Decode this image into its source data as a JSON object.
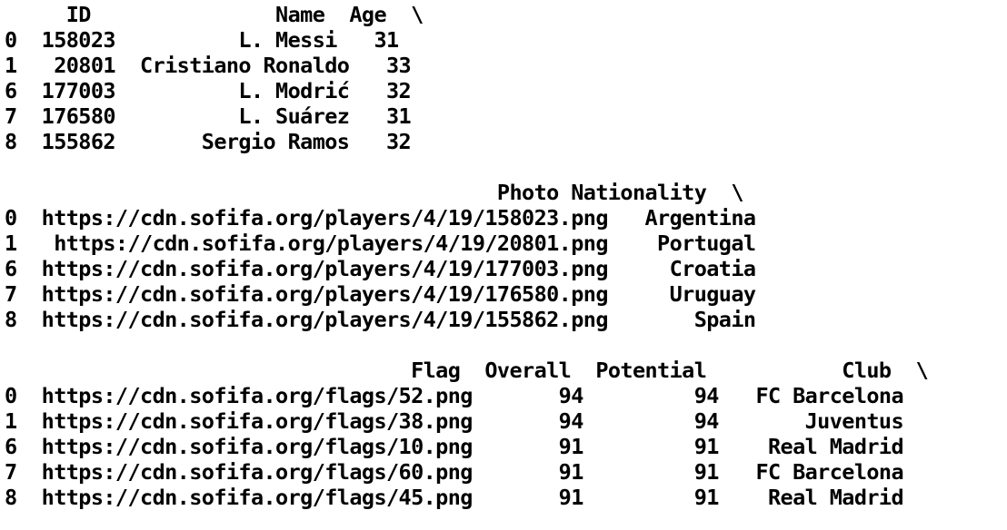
{
  "lines": [
    "     ID               Name  Age  \\",
    "0  158023          L. Messi   31",
    "1   20801  Cristiano Ronaldo   33",
    "6  177003          L. Modrić   32",
    "7  176580          L. Suárez   31",
    "8  155862       Sergio Ramos   32",
    "",
    "                                        Photo Nationality  \\",
    "0  https://cdn.sofifa.org/players/4/19/158023.png   Argentina",
    "1   https://cdn.sofifa.org/players/4/19/20801.png    Portugal",
    "6  https://cdn.sofifa.org/players/4/19/177003.png     Croatia",
    "7  https://cdn.sofifa.org/players/4/19/176580.png     Uruguay",
    "8  https://cdn.sofifa.org/players/4/19/155862.png       Spain",
    "",
    "                                 Flag  Overall  Potential           Club  \\",
    "0  https://cdn.sofifa.org/flags/52.png       94         94   FC Barcelona",
    "1  https://cdn.sofifa.org/flags/38.png       94         94       Juventus",
    "6  https://cdn.sofifa.org/flags/10.png       91         91    Real Madrid",
    "7  https://cdn.sofifa.org/flags/60.png       91         91   FC Barcelona",
    "8  https://cdn.sofifa.org/flags/45.png       91         91    Real Madrid"
  ]
}
